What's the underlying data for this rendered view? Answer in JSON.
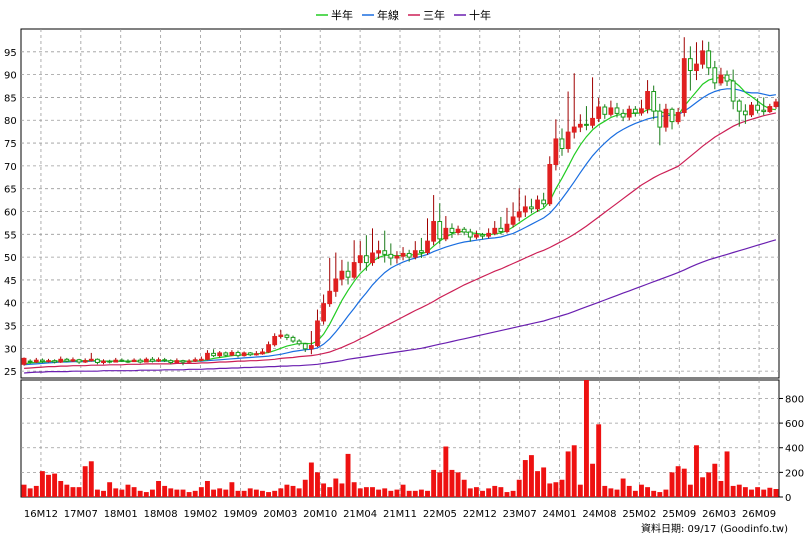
{
  "chart_data": {
    "type": "candlestick",
    "legend": [
      {
        "name": "半年",
        "color": "#22cc22"
      },
      {
        "name": "年線",
        "color": "#1a6ee0"
      },
      {
        "name": "三年",
        "color": "#cc1f55"
      },
      {
        "name": "十年",
        "color": "#6a1fb0"
      }
    ],
    "y_ticks": [
      25,
      30,
      35,
      40,
      45,
      50,
      55,
      60,
      65,
      70,
      75,
      80,
      85,
      90,
      95
    ],
    "vol_ticks": [
      0,
      200,
      400,
      600,
      800
    ],
    "ylim": [
      23.5,
      100
    ],
    "vol_lim": [
      0,
      950
    ],
    "x_labels": [
      "16M12",
      "17M07",
      "18M01",
      "18M08",
      "19M02",
      "19M09",
      "20M03",
      "20M10",
      "21M04",
      "21M11",
      "22M05",
      "22M12",
      "23M07",
      "24M01",
      "24M08",
      "25M02",
      "25M09",
      "26M03",
      "26M09"
    ],
    "candles": [
      [
        26.5,
        27.8,
        26.2,
        28.0
      ],
      [
        27.2,
        27.0,
        26.6,
        27.6
      ],
      [
        27.0,
        27.4,
        26.8,
        27.9
      ],
      [
        27.4,
        27.1,
        26.8,
        27.8
      ],
      [
        27.1,
        27.3,
        26.9,
        27.7
      ],
      [
        27.3,
        27.0,
        26.7,
        27.6
      ],
      [
        27.0,
        27.6,
        26.8,
        28.2
      ],
      [
        27.6,
        27.2,
        27.0,
        27.9
      ],
      [
        27.2,
        27.5,
        27.0,
        28.0
      ],
      [
        27.5,
        27.0,
        26.6,
        27.7
      ],
      [
        27.0,
        27.3,
        26.8,
        27.8
      ],
      [
        27.3,
        27.6,
        27.1,
        29.0
      ],
      [
        27.6,
        26.9,
        26.5,
        27.8
      ],
      [
        26.9,
        27.2,
        26.5,
        27.6
      ],
      [
        27.2,
        27.0,
        26.7,
        27.5
      ],
      [
        27.0,
        27.4,
        26.9,
        27.9
      ],
      [
        27.4,
        27.2,
        27.0,
        27.8
      ],
      [
        27.2,
        27.1,
        26.8,
        27.6
      ],
      [
        27.1,
        27.4,
        27.0,
        27.8
      ],
      [
        27.4,
        27.0,
        26.7,
        27.8
      ],
      [
        27.0,
        27.6,
        26.9,
        28.0
      ],
      [
        27.6,
        27.2,
        26.9,
        28.1
      ],
      [
        27.2,
        27.5,
        27.0,
        28.0
      ],
      [
        27.5,
        27.3,
        27.0,
        27.9
      ],
      [
        27.3,
        26.9,
        26.5,
        27.6
      ],
      [
        26.9,
        27.3,
        26.8,
        27.8
      ],
      [
        27.3,
        27.0,
        26.3,
        27.5
      ],
      [
        27.0,
        27.2,
        26.8,
        27.6
      ],
      [
        27.2,
        27.5,
        27.0,
        28.0
      ],
      [
        27.5,
        27.6,
        27.2,
        28.2
      ],
      [
        27.6,
        28.9,
        27.4,
        29.6
      ],
      [
        28.9,
        28.4,
        28.1,
        29.8
      ],
      [
        28.4,
        29.0,
        28.0,
        29.4
      ],
      [
        29.0,
        28.5,
        28.2,
        29.3
      ],
      [
        28.5,
        29.1,
        28.3,
        29.6
      ],
      [
        29.1,
        28.4,
        28.0,
        29.5
      ],
      [
        28.4,
        29.0,
        28.2,
        29.3
      ],
      [
        29.0,
        28.6,
        28.3,
        29.2
      ],
      [
        28.6,
        28.8,
        28.4,
        29.4
      ],
      [
        28.8,
        29.2,
        28.6,
        29.9
      ],
      [
        29.2,
        30.8,
        29.0,
        31.5
      ],
      [
        30.8,
        32.6,
        30.4,
        33.3
      ],
      [
        32.6,
        32.9,
        32.1,
        34.0
      ],
      [
        32.9,
        32.4,
        31.8,
        33.2
      ],
      [
        32.4,
        31.6,
        31.2,
        32.8
      ],
      [
        31.6,
        31.0,
        30.6,
        32.0
      ],
      [
        31.0,
        29.9,
        29.2,
        31.2
      ],
      [
        29.9,
        30.6,
        28.7,
        33.8
      ],
      [
        30.6,
        36.0,
        30.3,
        38.5
      ],
      [
        36.0,
        39.8,
        35.2,
        41.8
      ],
      [
        39.8,
        42.5,
        39.1,
        49.8
      ],
      [
        42.5,
        45.2,
        41.3,
        51.0
      ],
      [
        45.2,
        46.9,
        43.8,
        49.4
      ],
      [
        46.9,
        45.6,
        44.0,
        49.0
      ],
      [
        45.6,
        48.8,
        45.1,
        53.7
      ],
      [
        48.8,
        50.3,
        47.1,
        53.5
      ],
      [
        50.3,
        48.8,
        47.0,
        54.8
      ],
      [
        48.8,
        50.9,
        48.1,
        56.3
      ],
      [
        50.9,
        51.4,
        49.6,
        53.6
      ],
      [
        51.4,
        50.6,
        48.8,
        55.8
      ],
      [
        50.6,
        49.8,
        48.2,
        53.0
      ],
      [
        49.8,
        50.2,
        48.6,
        51.3
      ],
      [
        50.2,
        50.8,
        49.3,
        52.2
      ],
      [
        50.8,
        50.0,
        49.0,
        51.6
      ],
      [
        50.0,
        51.4,
        49.5,
        53.5
      ],
      [
        51.4,
        51.0,
        49.8,
        54.2
      ],
      [
        51.0,
        53.5,
        50.5,
        58.5
      ],
      [
        53.5,
        57.8,
        52.6,
        63.6
      ],
      [
        57.8,
        54.0,
        52.8,
        61.8
      ],
      [
        54.0,
        56.3,
        53.5,
        59.0
      ],
      [
        56.3,
        55.4,
        54.2,
        57.4
      ],
      [
        55.4,
        56.1,
        54.8,
        56.9
      ],
      [
        56.1,
        55.5,
        54.8,
        56.6
      ],
      [
        55.5,
        54.4,
        53.4,
        56.2
      ],
      [
        54.4,
        54.9,
        53.9,
        55.8
      ],
      [
        54.9,
        54.6,
        53.9,
        55.3
      ],
      [
        54.6,
        55.2,
        54.1,
        56.3
      ],
      [
        55.2,
        56.3,
        54.8,
        57.9
      ],
      [
        56.3,
        55.6,
        55.0,
        58.8
      ],
      [
        55.6,
        57.2,
        55.2,
        60.8
      ],
      [
        57.2,
        58.8,
        56.5,
        62.0
      ],
      [
        58.8,
        59.9,
        57.9,
        65.1
      ],
      [
        59.9,
        61.0,
        58.8,
        63.5
      ],
      [
        61.0,
        60.6,
        59.6,
        62.8
      ],
      [
        60.6,
        62.5,
        59.9,
        63.5
      ],
      [
        62.5,
        61.7,
        60.9,
        64.1
      ],
      [
        61.7,
        70.3,
        61.2,
        72.1
      ],
      [
        70.3,
        75.9,
        69.0,
        80.2
      ],
      [
        75.9,
        73.8,
        72.2,
        78.2
      ],
      [
        73.8,
        77.4,
        72.9,
        86.3
      ],
      [
        77.4,
        78.5,
        76.0,
        90.3
      ],
      [
        78.5,
        79.1,
        77.4,
        81.3
      ],
      [
        79.1,
        78.9,
        77.8,
        83.1
      ],
      [
        78.9,
        80.4,
        78.2,
        89.4
      ],
      [
        80.4,
        82.9,
        79.6,
        84.9
      ],
      [
        82.9,
        81.3,
        80.3,
        83.5
      ],
      [
        81.3,
        82.7,
        80.8,
        84.3
      ],
      [
        82.7,
        81.5,
        80.6,
        83.8
      ],
      [
        81.5,
        80.7,
        79.8,
        82.4
      ],
      [
        80.7,
        82.4,
        80.0,
        83.2
      ],
      [
        82.4,
        81.6,
        80.8,
        83.1
      ],
      [
        81.6,
        82.5,
        81.0,
        84.5
      ],
      [
        82.5,
        86.3,
        81.5,
        88.8
      ],
      [
        86.3,
        82.0,
        80.2,
        87.6
      ],
      [
        82.0,
        78.5,
        74.5,
        83.6
      ],
      [
        78.5,
        82.4,
        77.5,
        83.6
      ],
      [
        82.4,
        79.7,
        78.0,
        82.8
      ],
      [
        79.7,
        81.7,
        79.1,
        82.7
      ],
      [
        81.7,
        93.5,
        80.8,
        98.2
      ],
      [
        93.5,
        90.9,
        86.5,
        96.2
      ],
      [
        90.9,
        92.3,
        88.8,
        97.1
      ],
      [
        92.3,
        95.2,
        91.3,
        97.5
      ],
      [
        95.2,
        91.5,
        89.9,
        97.2
      ],
      [
        91.5,
        88.2,
        86.8,
        93.0
      ],
      [
        88.2,
        89.9,
        87.6,
        91.5
      ],
      [
        89.9,
        88.6,
        87.5,
        90.9
      ],
      [
        88.6,
        84.2,
        82.4,
        91.1
      ],
      [
        84.2,
        82.0,
        78.6,
        84.6
      ],
      [
        82.0,
        81.2,
        79.2,
        83.5
      ],
      [
        81.2,
        83.3,
        80.7,
        84.0
      ],
      [
        83.3,
        82.2,
        81.5,
        84.8
      ],
      [
        82.2,
        81.9,
        81.1,
        85.0
      ],
      [
        81.9,
        83.0,
        81.6,
        83.6
      ],
      [
        83.0,
        84.0,
        82.5,
        84.7
      ]
    ],
    "ma_half": [
      26.6,
      26.8,
      26.9,
      27.0,
      27.1,
      27.2,
      27.2,
      27.2,
      27.3,
      27.3,
      27.3,
      27.3,
      27.3,
      27.2,
      27.2,
      27.2,
      27.2,
      27.2,
      27.2,
      27.2,
      27.2,
      27.2,
      27.3,
      27.3,
      27.2,
      27.2,
      27.2,
      27.2,
      27.2,
      27.3,
      27.5,
      27.8,
      28.0,
      28.2,
      28.4,
      28.5,
      28.6,
      28.7,
      28.8,
      28.9,
      29.1,
      29.5,
      30.0,
      30.5,
      30.8,
      31.1,
      31.1,
      31.0,
      31.6,
      33.1,
      35.3,
      37.9,
      40.5,
      42.7,
      44.7,
      46.4,
      47.7,
      49.1,
      49.9,
      50.4,
      50.4,
      50.3,
      50.4,
      50.4,
      50.6,
      50.7,
      51.2,
      52.4,
      53.5,
      54.4,
      55.1,
      55.6,
      55.6,
      55.3,
      55.2,
      55.0,
      54.9,
      55.1,
      55.3,
      55.8,
      56.6,
      57.5,
      58.4,
      59.3,
      60.1,
      60.7,
      62.3,
      65.0,
      67.3,
      69.8,
      72.4,
      74.6,
      76.4,
      77.9,
      79.0,
      79.8,
      80.6,
      81.1,
      81.3,
      81.5,
      81.5,
      81.6,
      82.3,
      82.3,
      81.8,
      81.6,
      81.2,
      81.1,
      83.1,
      84.7,
      86.3,
      87.9,
      88.8,
      89.2,
      89.4,
      89.2,
      88.6,
      87.5,
      86.1,
      85.2,
      84.2,
      83.2,
      82.5,
      82.3
    ],
    "ma_year": [
      26.4,
      26.5,
      26.6,
      26.7,
      26.8,
      26.9,
      27.0,
      27.0,
      27.1,
      27.1,
      27.1,
      27.2,
      27.2,
      27.2,
      27.2,
      27.2,
      27.2,
      27.2,
      27.2,
      27.2,
      27.2,
      27.2,
      27.2,
      27.2,
      27.2,
      27.2,
      27.2,
      27.2,
      27.2,
      27.2,
      27.3,
      27.4,
      27.5,
      27.6,
      27.7,
      27.8,
      27.9,
      28.0,
      28.1,
      28.2,
      28.3,
      28.5,
      28.7,
      29.0,
      29.3,
      29.5,
      29.7,
      29.8,
      30.1,
      30.9,
      32.1,
      33.6,
      35.3,
      37.1,
      38.8,
      40.6,
      42.2,
      43.9,
      45.3,
      46.6,
      47.6,
      48.3,
      48.9,
      49.4,
      49.8,
      50.2,
      50.6,
      51.2,
      51.7,
      52.2,
      52.6,
      53.0,
      53.3,
      53.5,
      53.7,
      53.9,
      54.1,
      54.2,
      54.4,
      54.8,
      55.2,
      55.8,
      56.5,
      57.2,
      57.9,
      58.6,
      59.6,
      61.1,
      62.8,
      64.6,
      66.5,
      68.5,
      70.4,
      72.2,
      73.7,
      75.0,
      76.2,
      77.2,
      78.0,
      78.7,
      79.3,
      79.8,
      80.3,
      80.6,
      80.8,
      81.0,
      81.1,
      81.2,
      82.0,
      82.9,
      83.9,
      84.9,
      85.7,
      86.3,
      86.7,
      86.9,
      86.9,
      86.6,
      86.2,
      86.0,
      86.0,
      85.7,
      85.4,
      85.6
    ],
    "ma_3y": [
      25.6,
      25.7,
      25.8,
      25.9,
      26.0,
      26.0,
      26.1,
      26.1,
      26.2,
      26.2,
      26.2,
      26.3,
      26.3,
      26.3,
      26.4,
      26.4,
      26.4,
      26.5,
      26.5,
      26.5,
      26.6,
      26.6,
      26.6,
      26.6,
      26.6,
      26.7,
      26.7,
      26.7,
      26.7,
      26.8,
      26.8,
      26.9,
      27.0,
      27.0,
      27.1,
      27.2,
      27.2,
      27.3,
      27.3,
      27.4,
      27.5,
      27.6,
      27.8,
      27.9,
      28.0,
      28.2,
      28.3,
      28.4,
      28.6,
      28.9,
      29.2,
      29.7,
      30.2,
      30.8,
      31.4,
      32.1,
      32.7,
      33.4,
      34.1,
      34.8,
      35.5,
      36.2,
      36.9,
      37.6,
      38.3,
      38.9,
      39.6,
      40.3,
      41.1,
      41.8,
      42.5,
      43.2,
      43.9,
      44.5,
      45.1,
      45.7,
      46.3,
      46.9,
      47.4,
      48.0,
      48.6,
      49.2,
      49.8,
      50.4,
      51.0,
      51.5,
      52.1,
      52.8,
      53.5,
      54.2,
      55.0,
      55.9,
      56.8,
      57.8,
      58.8,
      59.8,
      60.8,
      61.8,
      62.8,
      63.8,
      64.8,
      65.8,
      66.6,
      67.4,
      68.1,
      68.7,
      69.3,
      69.9,
      71.0,
      72.1,
      73.2,
      74.3,
      75.3,
      76.3,
      77.1,
      77.9,
      78.7,
      79.3,
      79.8,
      80.2,
      80.6,
      81.0,
      81.3,
      81.6
    ],
    "ma_10y": [
      24.6,
      24.7,
      24.8,
      24.8,
      24.9,
      24.9,
      24.9,
      24.9,
      25.0,
      25.0,
      25.0,
      25.0,
      25.0,
      25.1,
      25.1,
      25.1,
      25.1,
      25.1,
      25.1,
      25.2,
      25.2,
      25.2,
      25.2,
      25.3,
      25.3,
      25.3,
      25.3,
      25.4,
      25.4,
      25.4,
      25.5,
      25.5,
      25.6,
      25.6,
      25.7,
      25.7,
      25.8,
      25.8,
      25.9,
      25.9,
      26.0,
      26.0,
      26.1,
      26.1,
      26.2,
      26.2,
      26.3,
      26.4,
      26.5,
      26.7,
      26.9,
      27.1,
      27.3,
      27.6,
      27.8,
      28.0,
      28.2,
      28.4,
      28.6,
      28.8,
      29.0,
      29.2,
      29.4,
      29.6,
      29.8,
      30.0,
      30.3,
      30.6,
      30.9,
      31.2,
      31.5,
      31.8,
      32.1,
      32.4,
      32.7,
      33.0,
      33.3,
      33.6,
      33.9,
      34.2,
      34.5,
      34.8,
      35.1,
      35.4,
      35.7,
      36.0,
      36.4,
      36.8,
      37.2,
      37.6,
      38.1,
      38.6,
      39.1,
      39.6,
      40.1,
      40.6,
      41.1,
      41.6,
      42.1,
      42.6,
      43.1,
      43.6,
      44.1,
      44.6,
      45.1,
      45.6,
      46.1,
      46.6,
      47.2,
      47.8,
      48.4,
      48.9,
      49.4,
      49.8,
      50.2,
      50.6,
      51.0,
      51.4,
      51.8,
      52.2,
      52.6,
      53.0,
      53.4,
      53.8
    ],
    "volumes": [
      100,
      70,
      90,
      210,
      180,
      190,
      130,
      100,
      80,
      80,
      250,
      290,
      60,
      50,
      120,
      70,
      60,
      100,
      80,
      50,
      40,
      60,
      130,
      90,
      70,
      60,
      60,
      40,
      50,
      80,
      130,
      60,
      70,
      60,
      120,
      50,
      50,
      70,
      60,
      50,
      40,
      50,
      70,
      100,
      90,
      70,
      140,
      280,
      200,
      110,
      80,
      150,
      110,
      350,
      120,
      70,
      80,
      80,
      60,
      70,
      50,
      60,
      100,
      50,
      50,
      60,
      50,
      220,
      200,
      410,
      220,
      200,
      140,
      70,
      80,
      50,
      70,
      90,
      80,
      40,
      50,
      140,
      300,
      340,
      210,
      240,
      110,
      120,
      140,
      370,
      420,
      100,
      950,
      270,
      590,
      90,
      70,
      60,
      150,
      90,
      50,
      100,
      80,
      50,
      40,
      60,
      200,
      250,
      230,
      100,
      420,
      160,
      200,
      270,
      130,
      370,
      90,
      100,
      80,
      60,
      80,
      60,
      75,
      65
    ]
  },
  "footer": {
    "date_label": "資料日期: 09/17",
    "source": "(Goodinfo.tw)"
  }
}
